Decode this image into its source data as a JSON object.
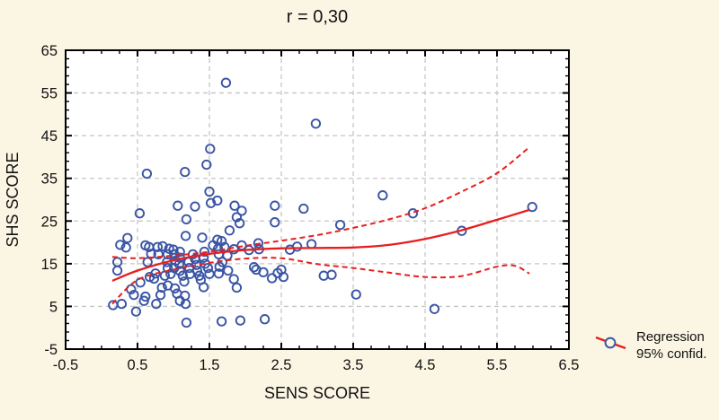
{
  "title": "r = 0,30",
  "colors": {
    "background": "#FBF6E4",
    "plot_background": "#FFFFFF",
    "frame": "#000000",
    "grid": "#C6C6C6",
    "marker": "#3A55A5",
    "regression": "#E81E1E",
    "text": "#111111"
  },
  "legend": {
    "line1": "Regression",
    "line2": "95% confid."
  },
  "chart_data": {
    "type": "scatter",
    "title": "r = 0,30",
    "xlabel": "SENS SCORE",
    "ylabel": "SHS SCORE",
    "xlim": [
      -0.5,
      6.5
    ],
    "ylim": [
      -5,
      65
    ],
    "x_major_ticks": [
      -0.5,
      0.5,
      1.5,
      2.5,
      3.5,
      4.5,
      5.5,
      6.5
    ],
    "y_major_ticks": [
      -5,
      5,
      15,
      25,
      35,
      45,
      55,
      65
    ],
    "x_minor_step": 0.25,
    "y_minor_step": 2,
    "grid": "dashed",
    "legend_position": "lower-right-outside",
    "points": [
      [
        0.16,
        5.3
      ],
      [
        0.28,
        5.6
      ],
      [
        0.22,
        13.4
      ],
      [
        0.22,
        15.4
      ],
      [
        0.26,
        19.4
      ],
      [
        0.34,
        18.8
      ],
      [
        0.36,
        21.0
      ],
      [
        0.41,
        9.0
      ],
      [
        0.45,
        7.7
      ],
      [
        0.48,
        3.8
      ],
      [
        0.54,
        10.6
      ],
      [
        0.59,
        6.3
      ],
      [
        0.61,
        7.3
      ],
      [
        0.53,
        26.8
      ],
      [
        0.63,
        36.1
      ],
      [
        0.61,
        19.3
      ],
      [
        0.66,
        18.9
      ],
      [
        0.69,
        17.3
      ],
      [
        0.64,
        15.4
      ],
      [
        0.67,
        11.9
      ],
      [
        0.73,
        11.5
      ],
      [
        0.75,
        12.7
      ],
      [
        0.79,
        17.2
      ],
      [
        0.78,
        18.9
      ],
      [
        0.85,
        19.1
      ],
      [
        0.76,
        5.6
      ],
      [
        0.82,
        7.7
      ],
      [
        0.84,
        9.4
      ],
      [
        0.92,
        9.9
      ],
      [
        0.94,
        18.5
      ],
      [
        0.92,
        17.2
      ],
      [
        0.91,
        15.4
      ],
      [
        0.92,
        14.0
      ],
      [
        0.88,
        12.2
      ],
      [
        0.96,
        12.6
      ],
      [
        1.02,
        9.2
      ],
      [
        1.05,
        8.0
      ],
      [
        1.01,
        14.0
      ],
      [
        1.03,
        15.7
      ],
      [
        1.01,
        17.2
      ],
      [
        1.0,
        18.3
      ],
      [
        1.06,
        28.6
      ],
      [
        1.09,
        17.8
      ],
      [
        1.09,
        16.4
      ],
      [
        1.08,
        14.9
      ],
      [
        1.09,
        13.3
      ],
      [
        1.13,
        12.2
      ],
      [
        1.15,
        10.8
      ],
      [
        1.09,
        6.3
      ],
      [
        1.16,
        7.5
      ],
      [
        1.17,
        5.6
      ],
      [
        1.16,
        36.5
      ],
      [
        1.18,
        25.4
      ],
      [
        1.17,
        21.5
      ],
      [
        1.18,
        1.2
      ],
      [
        1.21,
        15.4
      ],
      [
        1.22,
        14.0
      ],
      [
        1.23,
        12.6
      ],
      [
        1.27,
        17.2
      ],
      [
        1.3,
        28.4
      ],
      [
        1.3,
        16.1
      ],
      [
        1.32,
        14.7
      ],
      [
        1.33,
        13.3
      ],
      [
        1.36,
        12.2
      ],
      [
        1.38,
        11.2
      ],
      [
        1.4,
        21.1
      ],
      [
        1.42,
        9.5
      ],
      [
        1.43,
        17.8
      ],
      [
        1.42,
        16.4
      ],
      [
        1.44,
        15.0
      ],
      [
        1.48,
        14.0
      ],
      [
        1.5,
        12.6
      ],
      [
        1.46,
        38.2
      ],
      [
        1.51,
        41.9
      ],
      [
        1.5,
        31.9
      ],
      [
        1.52,
        29.2
      ],
      [
        1.61,
        29.8
      ],
      [
        1.55,
        19.3
      ],
      [
        1.61,
        20.6
      ],
      [
        1.67,
        20.3
      ],
      [
        1.62,
        18.5
      ],
      [
        1.63,
        17.2
      ],
      [
        1.64,
        14.3
      ],
      [
        1.63,
        12.7
      ],
      [
        1.68,
        15.4
      ],
      [
        1.71,
        18.9
      ],
      [
        1.75,
        16.9
      ],
      [
        1.76,
        13.4
      ],
      [
        1.84,
        11.4
      ],
      [
        1.88,
        9.4
      ],
      [
        1.84,
        18.4
      ],
      [
        1.95,
        19.3
      ],
      [
        1.78,
        22.8
      ],
      [
        1.73,
        57.4
      ],
      [
        1.67,
        1.5
      ],
      [
        1.85,
        28.6
      ],
      [
        1.95,
        27.4
      ],
      [
        1.88,
        25.9
      ],
      [
        1.92,
        24.5
      ],
      [
        1.93,
        1.7
      ],
      [
        2.05,
        18.2
      ],
      [
        2.18,
        19.8
      ],
      [
        2.19,
        18.4
      ],
      [
        2.12,
        14.2
      ],
      [
        2.15,
        13.6
      ],
      [
        2.25,
        13.0
      ],
      [
        2.37,
        11.6
      ],
      [
        2.45,
        12.8
      ],
      [
        2.5,
        13.6
      ],
      [
        2.53,
        11.9
      ],
      [
        2.27,
        2.0
      ],
      [
        2.41,
        28.6
      ],
      [
        2.41,
        24.7
      ],
      [
        2.62,
        18.3
      ],
      [
        2.72,
        19.0
      ],
      [
        2.81,
        27.9
      ],
      [
        2.92,
        19.6
      ],
      [
        2.98,
        47.8
      ],
      [
        3.09,
        12.2
      ],
      [
        3.2,
        12.4
      ],
      [
        3.32,
        24.1
      ],
      [
        3.54,
        7.8
      ],
      [
        3.91,
        31.0
      ],
      [
        4.33,
        26.8
      ],
      [
        4.63,
        4.4
      ],
      [
        5.01,
        22.7
      ],
      [
        5.99,
        28.3
      ]
    ],
    "regression_line": [
      [
        0.15,
        11.0
      ],
      [
        0.5,
        13.4
      ],
      [
        1.0,
        15.8
      ],
      [
        1.5,
        17.3
      ],
      [
        2.0,
        18.2
      ],
      [
        2.5,
        18.6
      ],
      [
        3.0,
        18.7
      ],
      [
        3.5,
        18.8
      ],
      [
        4.0,
        19.4
      ],
      [
        4.5,
        20.8
      ],
      [
        5.0,
        22.8
      ],
      [
        5.5,
        25.3
      ],
      [
        5.95,
        27.6
      ]
    ],
    "conf_upper": [
      [
        0.15,
        16.6
      ],
      [
        0.5,
        16.3
      ],
      [
        1.0,
        16.9
      ],
      [
        1.5,
        17.8
      ],
      [
        2.0,
        19.2
      ],
      [
        2.5,
        20.4
      ],
      [
        3.0,
        21.7
      ],
      [
        3.5,
        23.4
      ],
      [
        4.0,
        25.4
      ],
      [
        4.5,
        28.0
      ],
      [
        5.0,
        31.8
      ],
      [
        5.5,
        36.2
      ],
      [
        5.95,
        42.3
      ]
    ],
    "conf_lower": [
      [
        0.15,
        5.6
      ],
      [
        0.5,
        11.2
      ],
      [
        1.0,
        13.6
      ],
      [
        1.5,
        15.2
      ],
      [
        2.0,
        16.2
      ],
      [
        2.5,
        16.3
      ],
      [
        3.0,
        14.9
      ],
      [
        3.5,
        14.0
      ],
      [
        4.0,
        12.9
      ],
      [
        4.5,
        11.9
      ],
      [
        5.0,
        12.1
      ],
      [
        5.5,
        14.3
      ],
      [
        5.75,
        14.5
      ],
      [
        5.95,
        12.7
      ]
    ]
  }
}
